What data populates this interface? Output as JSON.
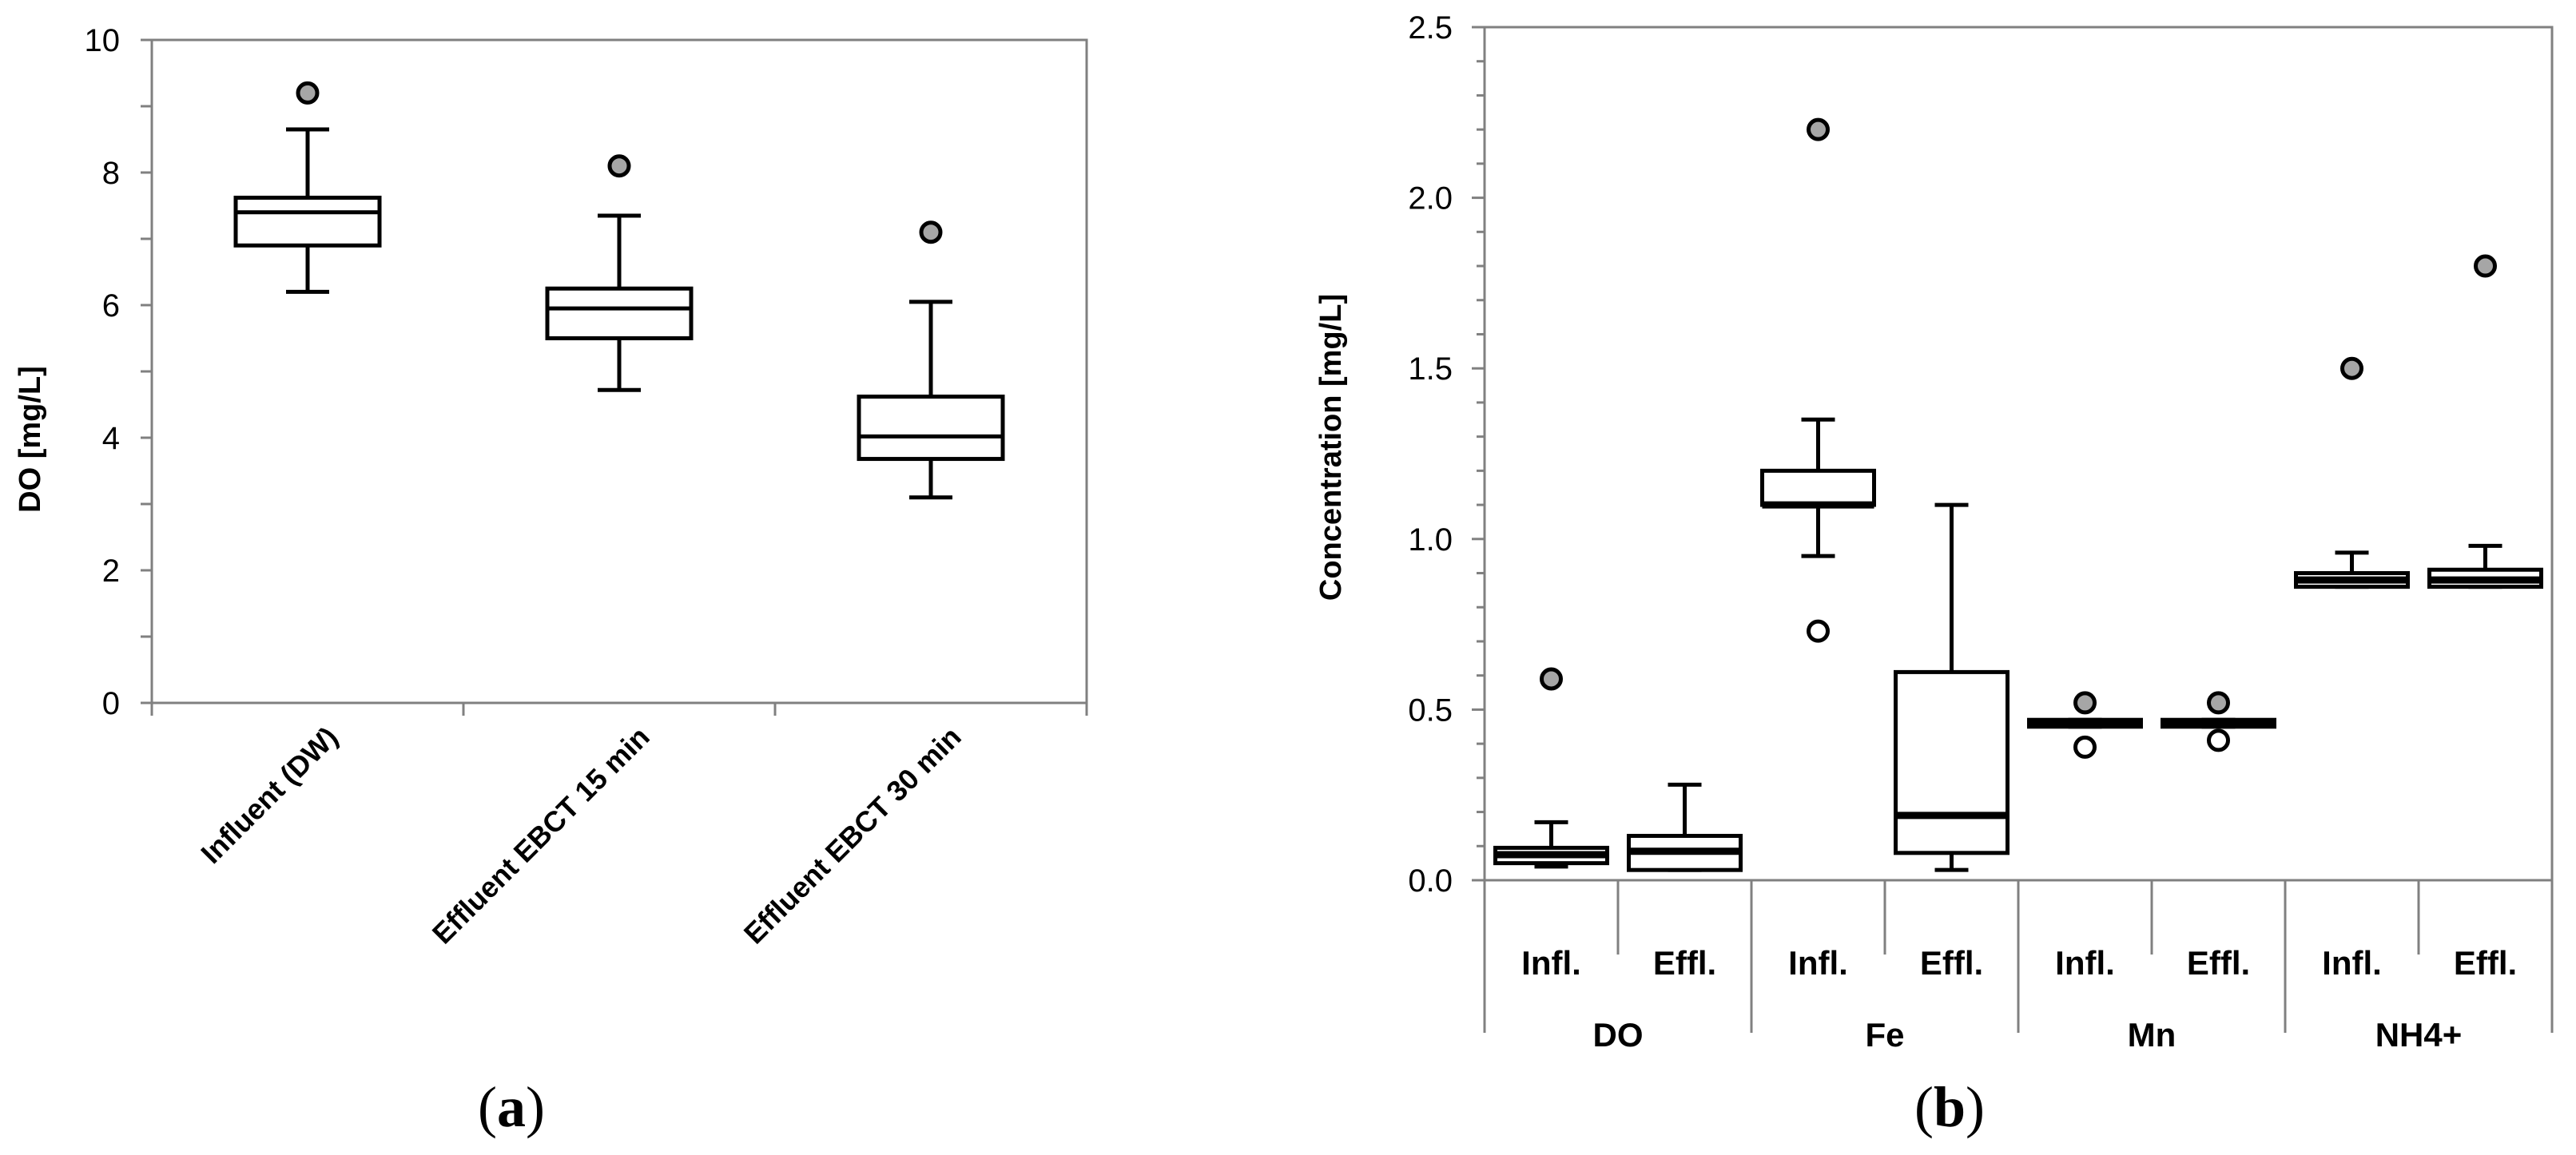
{
  "chart_data": [
    {
      "type": "box",
      "panel_label": "a",
      "ylabel": "DO [mg/L]",
      "ylim": [
        0,
        10
      ],
      "yticks": [
        0,
        2,
        4,
        6,
        8,
        10
      ],
      "categories": [
        "Influent (DW)",
        "Effluent EBCT 15 min",
        "Effluent EBCT 30 min"
      ],
      "boxes": [
        {
          "category": "Influent (DW)",
          "whisker_low": 6.2,
          "q1": 6.9,
          "median": 7.4,
          "q3": 7.62,
          "whisker_high": 8.65,
          "outliers_high": [
            9.2
          ],
          "outliers_low": []
        },
        {
          "category": "Effluent EBCT 15 min",
          "whisker_low": 4.72,
          "q1": 5.5,
          "median": 5.95,
          "q3": 6.25,
          "whisker_high": 7.35,
          "outliers_high": [
            8.1
          ],
          "outliers_low": []
        },
        {
          "category": "Effluent EBCT 30 min",
          "whisker_low": 3.1,
          "q1": 3.68,
          "median": 4.02,
          "q3": 4.62,
          "whisker_high": 6.05,
          "outliers_high": [
            7.1
          ],
          "outliers_low": []
        }
      ],
      "grid": false,
      "legend": "none"
    },
    {
      "type": "box",
      "panel_label": "b",
      "ylabel": "Concentration [mg/L]",
      "ylim": [
        0,
        2.5
      ],
      "yticks": [
        "0.0",
        "0.5",
        "1.0",
        "1.5",
        "2.0",
        "2.5"
      ],
      "groups": [
        {
          "name": "DO",
          "items": [
            {
              "label": "Infl.",
              "whisker_low": 0.04,
              "q1": 0.05,
              "median": 0.075,
              "q3": 0.095,
              "whisker_high": 0.17,
              "outliers_high": [
                0.59
              ],
              "outliers_low": []
            },
            {
              "label": "Effl.",
              "whisker_low": 0.03,
              "q1": 0.03,
              "median": 0.085,
              "q3": 0.13,
              "whisker_high": 0.28,
              "outliers_high": [],
              "outliers_low": []
            }
          ]
        },
        {
          "name": "Fe",
          "items": [
            {
              "label": "Infl.",
              "whisker_low": 0.95,
              "q1": 1.1,
              "median": 1.1,
              "q3": 1.2,
              "whisker_high": 1.35,
              "outliers_high": [
                2.2
              ],
              "outliers_low": [
                0.73
              ]
            },
            {
              "label": "Effl.",
              "whisker_low": 0.03,
              "q1": 0.08,
              "median": 0.19,
              "q3": 0.61,
              "whisker_high": 1.1,
              "outliers_high": [],
              "outliers_low": []
            }
          ]
        },
        {
          "name": "Mn",
          "items": [
            {
              "label": "Infl.",
              "whisker_low": 0.45,
              "q1": 0.45,
              "median": 0.46,
              "q3": 0.47,
              "whisker_high": 0.47,
              "outliers_high": [
                0.52
              ],
              "outliers_low": [
                0.39
              ]
            },
            {
              "label": "Effl.",
              "whisker_low": 0.45,
              "q1": 0.45,
              "median": 0.46,
              "q3": 0.47,
              "whisker_high": 0.47,
              "outliers_high": [
                0.52
              ],
              "outliers_low": [
                0.41
              ]
            }
          ]
        },
        {
          "name": "NH4+",
          "items": [
            {
              "label": "Infl.",
              "whisker_low": 0.86,
              "q1": 0.86,
              "median": 0.88,
              "q3": 0.9,
              "whisker_high": 0.96,
              "outliers_high": [
                1.5
              ],
              "outliers_low": []
            },
            {
              "label": "Effl.",
              "whisker_low": 0.86,
              "q1": 0.86,
              "median": 0.88,
              "q3": 0.91,
              "whisker_high": 0.98,
              "outliers_high": [
                1.8
              ],
              "outliers_low": []
            }
          ]
        }
      ],
      "grid": false,
      "legend": "none"
    }
  ],
  "colors": {
    "axis": "#000000",
    "frame": "#808080",
    "box_fill": "#ffffff",
    "outlier_high_fill": "#a6a6a6",
    "outlier_low_fill": "#ffffff"
  }
}
